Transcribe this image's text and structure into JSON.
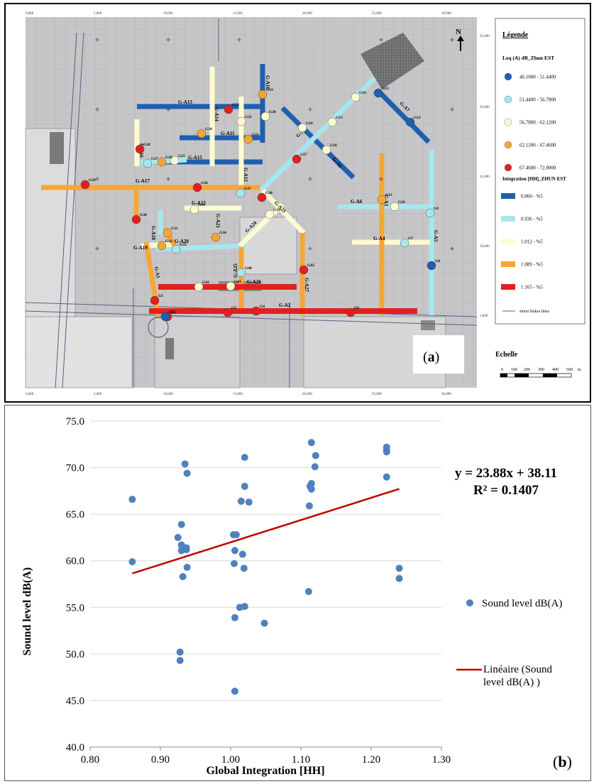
{
  "panel_a": {
    "label": "a",
    "top_ticks": [
      "0,000",
      "5,000",
      "10,000",
      "15,000",
      "20,000",
      "25,000",
      "30,000"
    ],
    "right_ticks": [
      "25,000",
      "20,000",
      "15,000",
      "10,000",
      "5,000"
    ],
    "north": "N",
    "legend": {
      "title": "Légende",
      "leq_title": "Leq (A) dB_Zhun EST",
      "leq_items": [
        {
          "label": "46.1000 - 51.4400",
          "color": "#1f5fb0"
        },
        {
          "label": "51.4400 - 56.7800",
          "color": "#a8e6ef"
        },
        {
          "label": "56.7800 - 62.1200",
          "color": "#fffbd0"
        },
        {
          "label": "62.1200 - 67.4600",
          "color": "#f5a636"
        },
        {
          "label": "67.4600 - 72.8000",
          "color": "#e32020"
        }
      ],
      "int_title": "Integration [HH]_ZHUN EST",
      "int_items": [
        {
          "label": "0.860 - %5",
          "color": "#1f5fb0"
        },
        {
          "label": "0.936 - %5",
          "color": "#a8e6ef"
        },
        {
          "label": "1.012 - %5",
          "color": "#fffbd0"
        },
        {
          "label": "1.089 - %5",
          "color": "#f5a636"
        },
        {
          "label": "1.165 - %5",
          "color": "#e32020"
        }
      ],
      "street_label": "street biskra lines"
    },
    "scale": {
      "title": "Echelle",
      "ticks": [
        "0",
        "100",
        "200",
        "300",
        "400",
        "500"
      ],
      "unit": "m"
    },
    "street_labels": [
      "G-A13",
      "G-A10",
      "G-A11",
      "G-A15",
      "G-A16",
      "G-A17",
      "G-A14",
      "G-A12",
      "G-A7",
      "G-A8",
      "G-A9",
      "G-A22",
      "G-A21",
      "G-A20",
      "G-A18",
      "G-A19",
      "G-A1",
      "G-A23",
      "G-A24",
      "G-A6",
      "G-A3",
      "G-A4",
      "G-A5",
      "G-A26",
      "G-A27",
      "G-A25",
      "G-A2"
    ],
    "point_labels": [
      "G1",
      "G2",
      "G3",
      "G4",
      "G5",
      "G6",
      "G7",
      "G8",
      "G9",
      "G10",
      "G11",
      "G12",
      "G13",
      "G14",
      "G15",
      "G16",
      "G17",
      "G18",
      "G19",
      "G20",
      "G21",
      "G22",
      "G23",
      "G24",
      "G25",
      "G26",
      "G27",
      "G28",
      "G29",
      "G30",
      "G31",
      "G32",
      "G33",
      "G34",
      "G35",
      "G36",
      "G37",
      "G38",
      "G39",
      "G40",
      "G41",
      "G42",
      "G43"
    ]
  },
  "panel_b": {
    "label": "b",
    "equation": "y = 23.88x + 38.11",
    "r2": "R² = 0.1407",
    "legend_scatter": "Sound level dB(A)",
    "legend_line_1": "Linéaire (Sound",
    "legend_line_2": "level dB(A) )"
  },
  "chart_data": {
    "type": "scatter",
    "xlabel": "Global Integration [HH]",
    "ylabel": "Sound level dB(A)",
    "xlim": [
      0.8,
      1.3
    ],
    "ylim": [
      40.0,
      75.0
    ],
    "x_ticks": [
      "0.80",
      "0.90",
      "1.00",
      "1.10",
      "1.20",
      "1.30"
    ],
    "y_ticks": [
      "40.0",
      "45.0",
      "50.0",
      "55.0",
      "60.0",
      "65.0",
      "70.0",
      "75.0"
    ],
    "grid": "horizontal",
    "series": [
      {
        "name": "Sound level dB(A)",
        "color": "#4f81bd",
        "points": [
          [
            0.86,
            66.6
          ],
          [
            0.86,
            59.9
          ],
          [
            0.925,
            62.5
          ],
          [
            0.928,
            50.2
          ],
          [
            0.928,
            49.3
          ],
          [
            0.93,
            63.9
          ],
          [
            0.93,
            61.7
          ],
          [
            0.93,
            61.1
          ],
          [
            0.932,
            58.3
          ],
          [
            0.935,
            70.4
          ],
          [
            0.937,
            61.4
          ],
          [
            0.937,
            61.2
          ],
          [
            0.938,
            59.3
          ],
          [
            0.938,
            69.4
          ],
          [
            1.004,
            62.8
          ],
          [
            1.005,
            59.7
          ],
          [
            1.006,
            61.1
          ],
          [
            1.006,
            53.9
          ],
          [
            1.006,
            46.0
          ],
          [
            1.008,
            62.8
          ],
          [
            1.013,
            55.0
          ],
          [
            1.015,
            66.4
          ],
          [
            1.017,
            60.7
          ],
          [
            1.019,
            59.2
          ],
          [
            1.02,
            55.1
          ],
          [
            1.02,
            68.0
          ],
          [
            1.02,
            71.1
          ],
          [
            1.026,
            66.3
          ],
          [
            1.048,
            53.3
          ],
          [
            1.111,
            56.7
          ],
          [
            1.112,
            65.9
          ],
          [
            1.113,
            68.0
          ],
          [
            1.115,
            72.7
          ],
          [
            1.115,
            68.3
          ],
          [
            1.115,
            67.7
          ],
          [
            1.12,
            70.1
          ],
          [
            1.121,
            71.3
          ],
          [
            1.222,
            72.2
          ],
          [
            1.222,
            71.9
          ],
          [
            1.222,
            71.7
          ],
          [
            1.222,
            69.0
          ],
          [
            1.24,
            59.2
          ],
          [
            1.24,
            58.1
          ]
        ]
      }
    ],
    "trendline": {
      "name": "Linéaire (Sound level dB(A) )",
      "slope": 23.88,
      "intercept": 38.11,
      "x_range": [
        0.86,
        1.24
      ],
      "color": "#c00000"
    }
  }
}
